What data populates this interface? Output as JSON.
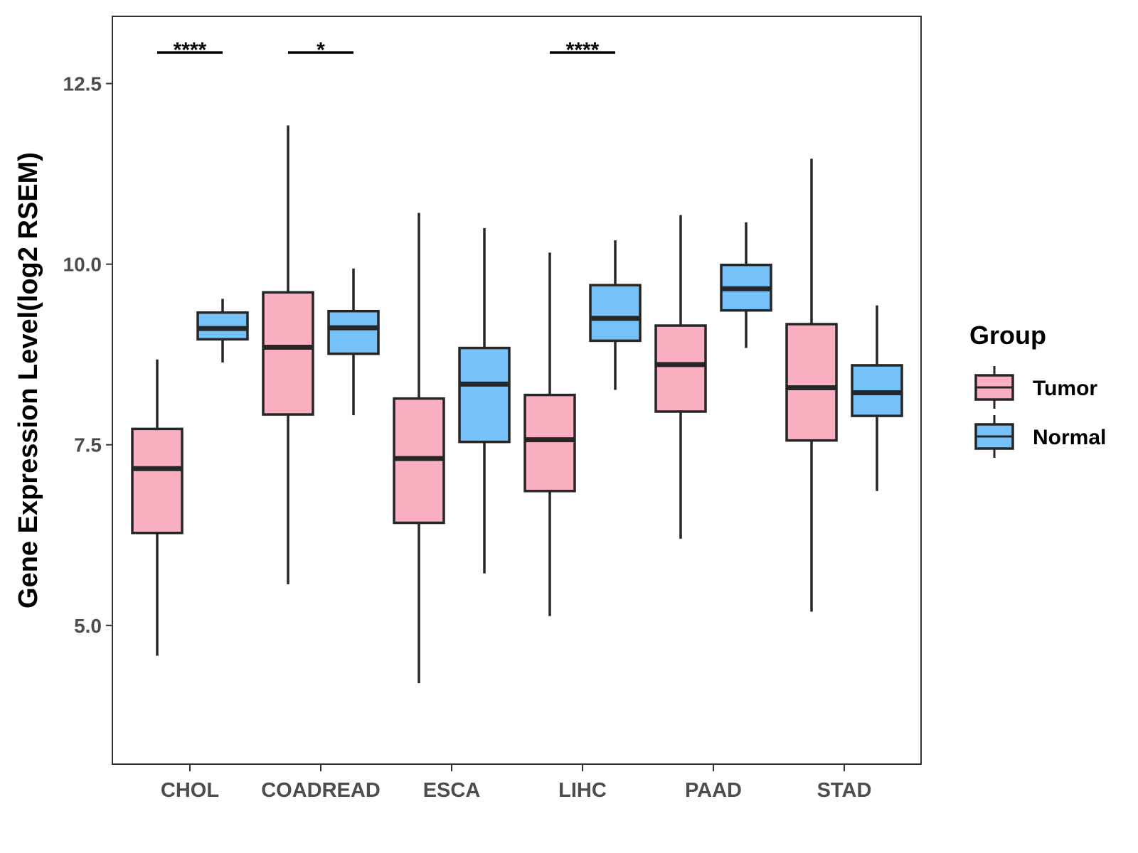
{
  "chart_data": {
    "type": "boxplot",
    "title": "",
    "xlabel": "",
    "ylabel": "Gene Expression Level(log2 RSEM)",
    "ylim": [
      3.08,
      13.43
    ],
    "yticks": [
      "5.0",
      "7.5",
      "10.0",
      "12.5"
    ],
    "ytick_values": [
      5.0,
      7.5,
      10.0,
      12.5
    ],
    "grid": false,
    "categories": [
      "CHOL",
      "COADREAD",
      "ESCA",
      "LIHC",
      "PAAD",
      "STAD"
    ],
    "legend": {
      "title": "Group",
      "position": "right",
      "entries": [
        "Tumor",
        "Normal"
      ]
    },
    "colors": {
      "Tumor": "#FBB0C1",
      "Normal": "#76C1F8",
      "outline": "#262626"
    },
    "series": [
      {
        "name": "Tumor",
        "boxes": [
          {
            "min": 4.58,
            "q1": 6.28,
            "median": 7.17,
            "q3": 7.72,
            "max": 8.68
          },
          {
            "min": 5.57,
            "q1": 7.92,
            "median": 8.85,
            "q3": 9.61,
            "max": 11.92
          },
          {
            "min": 4.2,
            "q1": 6.42,
            "median": 7.31,
            "q3": 8.14,
            "max": 10.71
          },
          {
            "min": 5.13,
            "q1": 6.86,
            "median": 7.57,
            "q3": 8.19,
            "max": 10.16
          },
          {
            "min": 6.2,
            "q1": 7.96,
            "median": 8.61,
            "q3": 9.15,
            "max": 10.68
          },
          {
            "min": 5.19,
            "q1": 7.56,
            "median": 8.29,
            "q3": 9.17,
            "max": 11.46
          }
        ]
      },
      {
        "name": "Normal",
        "boxes": [
          {
            "min": 8.64,
            "q1": 8.96,
            "median": 9.11,
            "q3": 9.33,
            "max": 9.52
          },
          {
            "min": 7.91,
            "q1": 8.76,
            "median": 9.12,
            "q3": 9.35,
            "max": 9.94
          },
          {
            "min": 5.72,
            "q1": 7.54,
            "median": 8.34,
            "q3": 8.84,
            "max": 10.5
          },
          {
            "min": 8.26,
            "q1": 8.94,
            "median": 9.25,
            "q3": 9.71,
            "max": 10.33
          },
          {
            "min": 8.84,
            "q1": 9.36,
            "median": 9.66,
            "q3": 9.99,
            "max": 10.58
          },
          {
            "min": 6.86,
            "q1": 7.9,
            "median": 8.22,
            "q3": 8.6,
            "max": 9.43
          }
        ]
      }
    ],
    "annotations": [
      {
        "category": "CHOL",
        "label": "****"
      },
      {
        "category": "COADREAD",
        "label": "*"
      },
      {
        "category": "LIHC",
        "label": "****"
      }
    ]
  }
}
